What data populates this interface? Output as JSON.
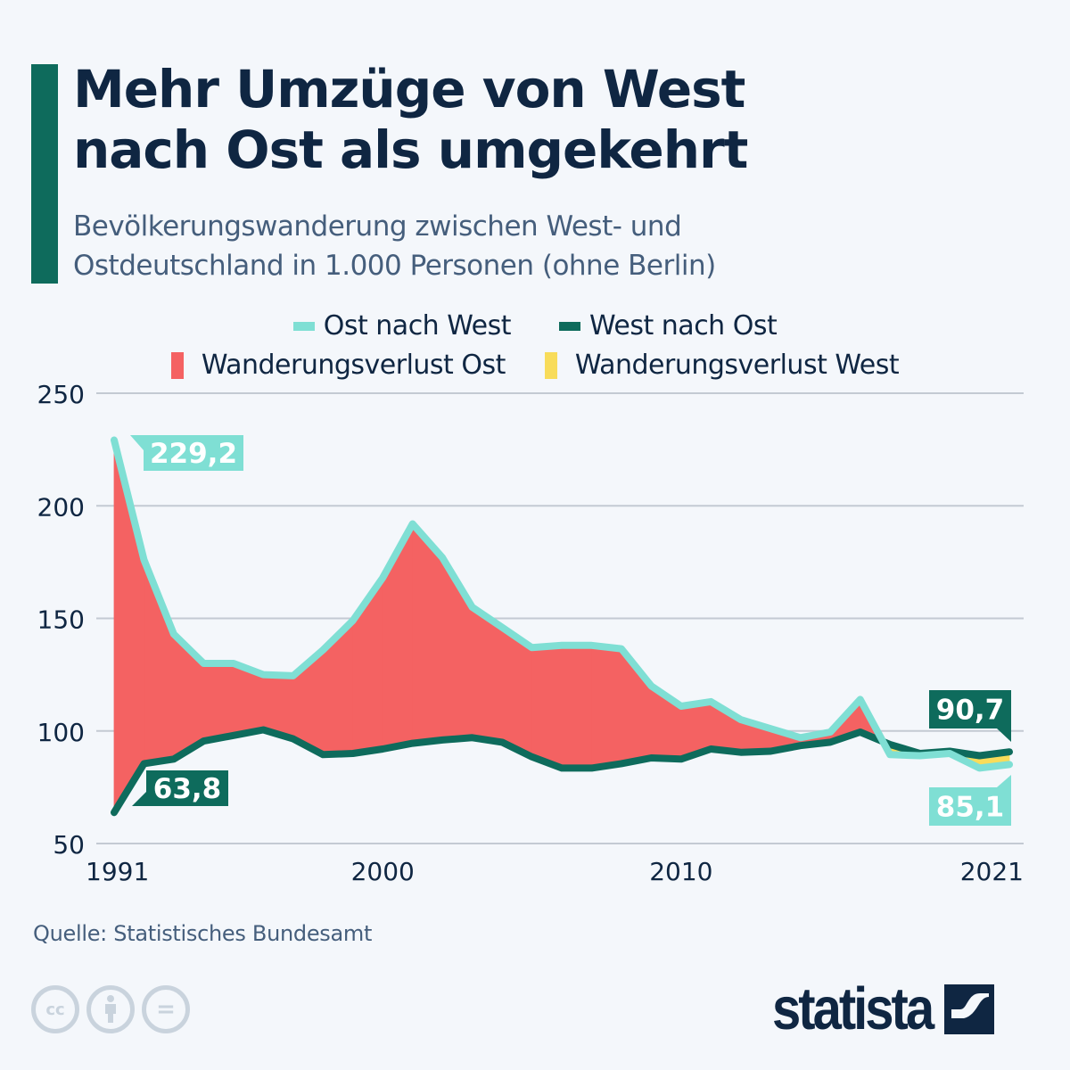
{
  "header": {
    "title_line1": "Mehr Umzüge von West",
    "title_line2": "nach Ost als umgekehrt",
    "subtitle_line1": "Bevölkerungswanderung zwischen West- und",
    "subtitle_line2": "Ostdeutschland in 1.000 Personen (ohne Berlin)"
  },
  "colors": {
    "accent": "#0e6b5c",
    "ost_nach_west": "#7fdfd4",
    "west_nach_ost": "#0e6b5c",
    "verlust_ost": "#f46262",
    "verlust_west": "#f8dc5a",
    "text_dark": "#0f2642",
    "text_muted": "#455e7c",
    "grid": "#c3cad3"
  },
  "legend": {
    "items": [
      {
        "label": "Ost nach West",
        "color": "#7fdfd4",
        "kind": "line"
      },
      {
        "label": "West nach Ost",
        "color": "#0e6b5c",
        "kind": "line"
      },
      {
        "label": "Wanderungsverlust Ost",
        "color": "#f46262",
        "kind": "area"
      },
      {
        "label": "Wanderungsverlust West",
        "color": "#f8dc5a",
        "kind": "area"
      }
    ]
  },
  "chart_data": {
    "type": "area",
    "title": "Mehr Umzüge von West nach Ost als umgekehrt",
    "subtitle": "Bevölkerungswanderung zwischen West- und Ostdeutschland in 1.000 Personen (ohne Berlin)",
    "xlabel": "",
    "ylabel": "",
    "x": [
      1991,
      1992,
      1993,
      1994,
      1995,
      1996,
      1997,
      1998,
      1999,
      2000,
      2001,
      2002,
      2003,
      2004,
      2005,
      2006,
      2007,
      2008,
      2009,
      2010,
      2011,
      2012,
      2013,
      2014,
      2015,
      2016,
      2017,
      2018,
      2019,
      2020,
      2021
    ],
    "x_ticks": [
      "1991",
      "2000",
      "2010",
      "2021"
    ],
    "x_tick_values": [
      1991,
      2000,
      2010,
      2021
    ],
    "ylim": [
      50,
      250
    ],
    "y_ticks": [
      50,
      100,
      150,
      200,
      250
    ],
    "y_tick_labels": [
      "50",
      "100",
      "150",
      "200",
      "250"
    ],
    "grid": true,
    "legend_position": "top",
    "series": [
      {
        "name": "Ost nach West",
        "color": "#7fdfd4",
        "values": [
          229.2,
          176,
          143,
          130,
          130,
          125,
          124.5,
          136,
          149,
          168,
          192,
          177,
          155,
          146,
          137,
          138,
          138,
          136.5,
          120,
          111,
          113,
          105,
          101,
          97,
          99.5,
          114,
          89.5,
          89,
          90,
          83.5,
          85.1
        ]
      },
      {
        "name": "West nach Ost",
        "color": "#0e6b5c",
        "values": [
          63.8,
          85.5,
          87.5,
          95.5,
          98,
          100.5,
          96.5,
          89.5,
          90,
          92,
          94.5,
          96,
          97,
          95,
          88.5,
          83.5,
          83.5,
          85.5,
          88,
          87.5,
          92,
          90.5,
          91,
          93.5,
          95,
          99.5,
          94,
          90,
          91,
          89,
          90.7
        ]
      }
    ],
    "areas": [
      {
        "name": "Wanderungsverlust Ost",
        "color": "#f46262",
        "rule": "Ost nach West > West nach Ost"
      },
      {
        "name": "Wanderungsverlust West",
        "color": "#f8dc5a",
        "rule": "West nach Ost > Ost nach West"
      }
    ],
    "annotations": [
      {
        "series": "Ost nach West",
        "year": 1991,
        "text": "229,2"
      },
      {
        "series": "West nach Ost",
        "year": 1991,
        "text": "63,8"
      },
      {
        "series": "West nach Ost",
        "year": 2021,
        "text": "90,7"
      },
      {
        "series": "Ost nach West",
        "year": 2021,
        "text": "85,1"
      }
    ]
  },
  "footer": {
    "source": "Quelle: Statistisches Bundesamt",
    "license_icons": [
      "cc-icon",
      "attribution-icon",
      "no-derivatives-icon"
    ],
    "cc_label": "cc",
    "eq_label": "=",
    "logo_text": "statista"
  }
}
